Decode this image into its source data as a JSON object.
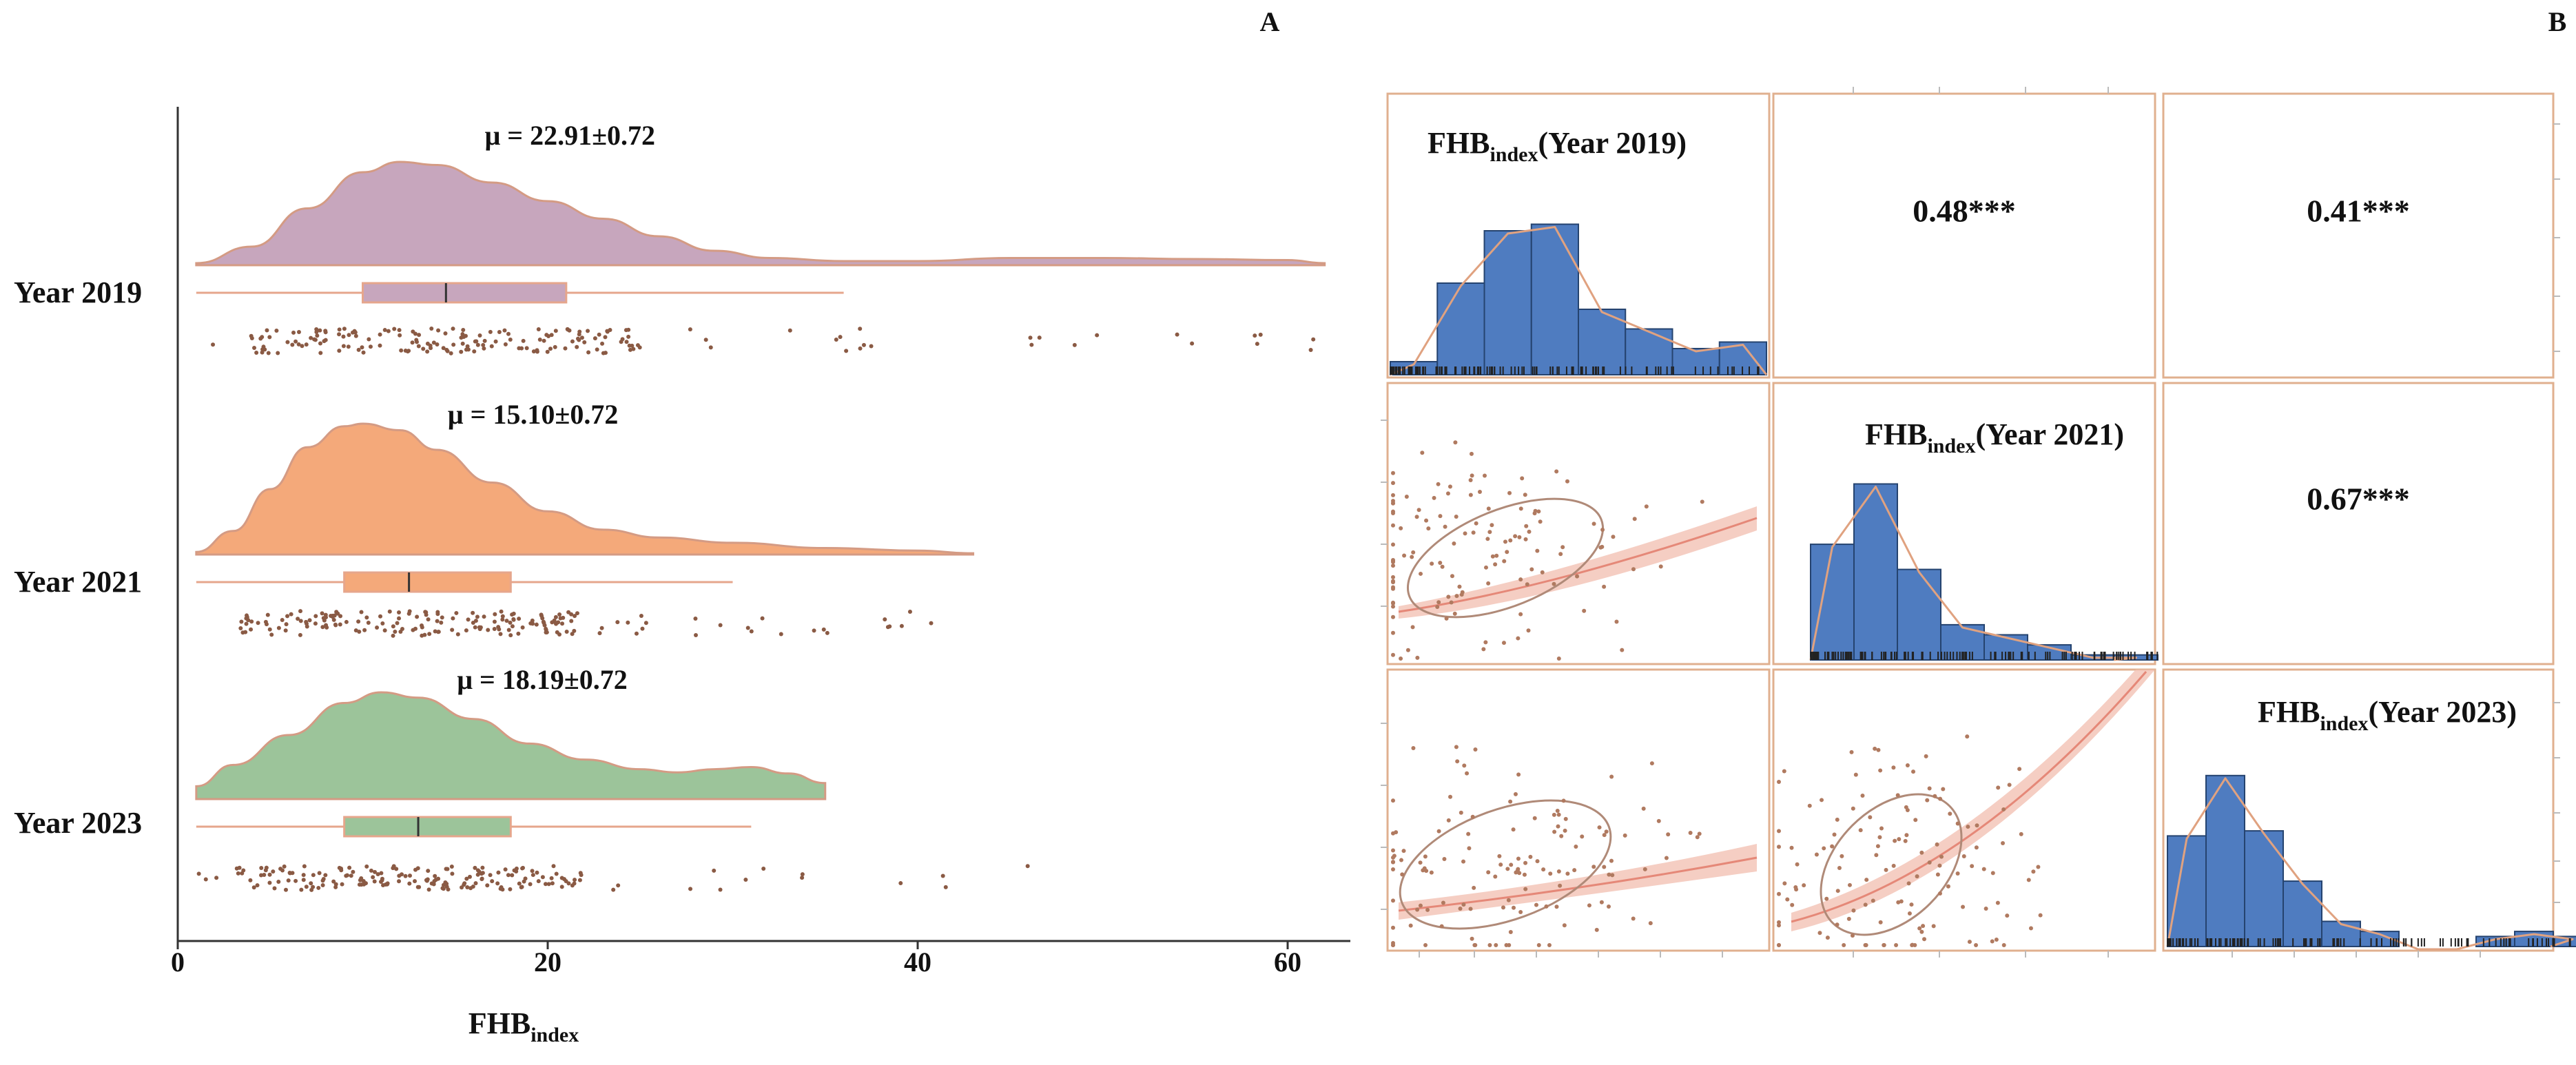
{
  "chart_data": [
    {
      "panel_label": "A",
      "type": "raincloud",
      "xlabel": "FHB",
      "xlabel_sub": "index",
      "xlim": [
        0,
        63
      ],
      "xticks": [
        0,
        20,
        40,
        60
      ],
      "colors": {
        "2019": "#c7a6bd",
        "2021": "#f4a97a",
        "2023": "#9cc49a",
        "line": "#e6a68c",
        "points": "#8a5a44"
      },
      "series": [
        {
          "name": "Year 2019",
          "mean_label": "μ = 22.91±0.72",
          "color_key": "2019",
          "box": {
            "whisker_low": 1,
            "q1": 10,
            "median": 14.5,
            "q3": 21,
            "whisker_high": 36
          },
          "density": [
            [
              1,
              0.02
            ],
            [
              4,
              0.18
            ],
            [
              7,
              0.55
            ],
            [
              10,
              0.9
            ],
            [
              12,
              1.0
            ],
            [
              14,
              0.97
            ],
            [
              17,
              0.8
            ],
            [
              20,
              0.62
            ],
            [
              23,
              0.45
            ],
            [
              26,
              0.28
            ],
            [
              29,
              0.14
            ],
            [
              32,
              0.07
            ],
            [
              36,
              0.04
            ],
            [
              40,
              0.04
            ],
            [
              45,
              0.07
            ],
            [
              50,
              0.07
            ],
            [
              55,
              0.06
            ],
            [
              60,
              0.05
            ],
            [
              62,
              0.02
            ]
          ],
          "density_range": [
            1,
            62
          ],
          "points_range": [
            1,
            62
          ],
          "points_seed": 19
        },
        {
          "name": "Year 2021",
          "mean_label": "μ = 15.10±0.72",
          "color_key": "2021",
          "box": {
            "whisker_low": 1,
            "q1": 9,
            "median": 12.5,
            "q3": 18,
            "whisker_high": 30
          },
          "density": [
            [
              1,
              0.02
            ],
            [
              3,
              0.18
            ],
            [
              5,
              0.5
            ],
            [
              7,
              0.82
            ],
            [
              9,
              0.98
            ],
            [
              10,
              1.0
            ],
            [
              12,
              0.95
            ],
            [
              14,
              0.8
            ],
            [
              17,
              0.55
            ],
            [
              20,
              0.33
            ],
            [
              23,
              0.19
            ],
            [
              26,
              0.13
            ],
            [
              30,
              0.09
            ],
            [
              35,
              0.05
            ],
            [
              40,
              0.03
            ],
            [
              43,
              0.01
            ]
          ],
          "density_range": [
            1,
            43
          ],
          "points_range": [
            3,
            43
          ],
          "points_seed": 21
        },
        {
          "name": "Year 2023",
          "mean_label": "μ = 18.19±0.72",
          "color_key": "2023",
          "box": {
            "whisker_low": 1,
            "q1": 9,
            "median": 13,
            "q3": 18,
            "whisker_high": 31
          },
          "density": [
            [
              1,
              0.12
            ],
            [
              3,
              0.32
            ],
            [
              6,
              0.6
            ],
            [
              9,
              0.9
            ],
            [
              11,
              1.0
            ],
            [
              13,
              0.95
            ],
            [
              16,
              0.75
            ],
            [
              19,
              0.52
            ],
            [
              22,
              0.37
            ],
            [
              25,
              0.28
            ],
            [
              27,
              0.25
            ],
            [
              29,
              0.28
            ],
            [
              31,
              0.3
            ],
            [
              33,
              0.24
            ],
            [
              35,
              0.15
            ]
          ],
          "density_range": [
            1,
            35
          ],
          "points_range": [
            1,
            46
          ],
          "points_seed": 23
        }
      ]
    },
    {
      "panel_label": "B",
      "type": "pairs",
      "diag_titles": [
        {
          "base": "FHB",
          "sub": "index",
          "rest": "(Year 2019)"
        },
        {
          "base": "FHB",
          "sub": "index",
          "rest": "(Year 2021)"
        },
        {
          "base": "FHB",
          "sub": "index",
          "rest": "(Year 2023)"
        }
      ],
      "correlations": [
        {
          "row": 0,
          "col": 1,
          "label": "0.48***"
        },
        {
          "row": 0,
          "col": 2,
          "label": "0.41***"
        },
        {
          "row": 1,
          "col": 2,
          "label": "0.67***"
        }
      ],
      "histograms": [
        {
          "variable": "Year 2019",
          "counts": [
            2,
            14,
            22,
            23,
            10,
            7,
            4,
            5
          ]
        },
        {
          "variable": "Year 2021",
          "counts": [
            23,
            35,
            18,
            7,
            5,
            3,
            1,
            1
          ]
        },
        {
          "variable": "Year 2023",
          "counts": [
            22,
            34,
            23,
            13,
            5,
            3,
            0,
            0,
            2,
            3,
            2
          ]
        }
      ],
      "colors": {
        "bar": "#4f7cc0",
        "bar_edge": "#25436f",
        "frame": "#e0b08f",
        "smooth": "#e58878",
        "band": "#f2c2b4",
        "ellipse": "#b08a78",
        "density": "#e0a280"
      }
    }
  ]
}
